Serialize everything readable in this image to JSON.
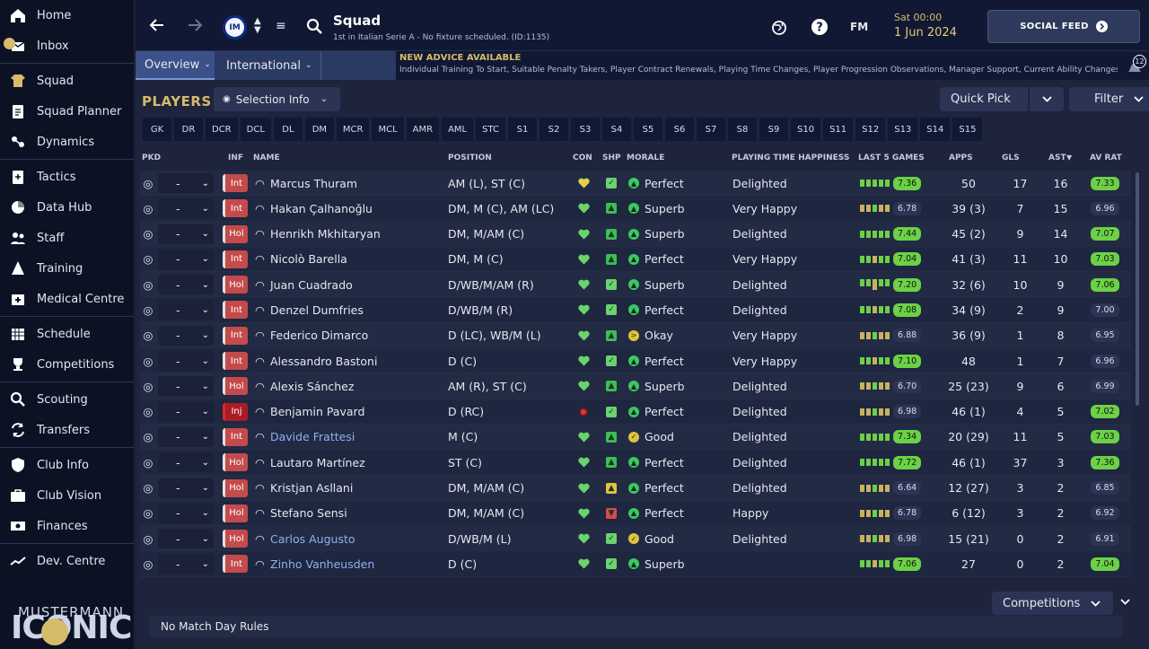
{
  "sidebar": {
    "items": [
      {
        "label": "Home",
        "icon": "home-icon"
      },
      {
        "label": "Inbox",
        "icon": "inbox-icon"
      },
      {
        "label": "Squad",
        "icon": "jersey-icon"
      },
      {
        "label": "Squad Planner",
        "icon": "clipboard-icon"
      },
      {
        "label": "Dynamics",
        "icon": "dynamics-icon"
      },
      {
        "label": "Tactics",
        "icon": "tactics-icon"
      },
      {
        "label": "Data Hub",
        "icon": "data-hub-icon"
      },
      {
        "label": "Staff",
        "icon": "staff-icon"
      },
      {
        "label": "Training",
        "icon": "training-icon"
      },
      {
        "label": "Medical Centre",
        "icon": "medical-icon"
      },
      {
        "label": "Schedule",
        "icon": "calendar-icon"
      },
      {
        "label": "Competitions",
        "icon": "trophy-icon"
      },
      {
        "label": "Scouting",
        "icon": "search-icon"
      },
      {
        "label": "Transfers",
        "icon": "transfer-icon"
      },
      {
        "label": "Club Info",
        "icon": "shield-icon"
      },
      {
        "label": "Club Vision",
        "icon": "briefcase-icon"
      },
      {
        "label": "Finances",
        "icon": "money-icon"
      },
      {
        "label": "Dev. Centre",
        "icon": "dev-centre-icon"
      }
    ],
    "logo_top": "MUSTERMANN",
    "logo_big": "ICONIC"
  },
  "header": {
    "crest_text": "IM",
    "title": "Squad",
    "subtitle": "1st in Italian Serie A - No fixture scheduled. (ID:1135)",
    "time": "Sat 00:00",
    "date": "1 Jun 2024",
    "fm_label": "FM",
    "social_label": "SOCIAL FEED"
  },
  "tabs": [
    {
      "label": "Overview"
    },
    {
      "label": "International"
    }
  ],
  "advice": {
    "heading": "NEW ADVICE AVAILABLE",
    "body": "Individual Training To Start, Suitable Penalty Takers, Player Contract Renewals, Playing Time Changes, Player Progression Observations, Manager Support, Current Ability Changes",
    "count": "12"
  },
  "players_title": "PLAYERS",
  "selection_info": "Selection Info",
  "quick_pick": "Quick Pick",
  "filter": "Filter",
  "position_tabs": [
    "GK",
    "DR",
    "DCR",
    "DCL",
    "DL",
    "DM",
    "MCR",
    "MCL",
    "AMR",
    "AML",
    "STC",
    "S1",
    "S2",
    "S3",
    "S4",
    "S5",
    "S6",
    "S7",
    "S8",
    "S9",
    "S10",
    "S11",
    "S12",
    "S13",
    "S14",
    "S15"
  ],
  "columns": {
    "pkd": "PKD",
    "inf": "INF",
    "name": "NAME",
    "position": "POSITION",
    "con": "CON",
    "shp": "SHP",
    "morale": "MORALE",
    "pth": "PLAYING TIME HAPPINESS",
    "last5": "LAST 5 GAMES",
    "apps": "APPS",
    "gls": "GLS",
    "ast": "AST",
    "avr": "AV RAT"
  },
  "players": [
    {
      "pkd": "-",
      "inf": "Int",
      "inj": false,
      "name": "Marcus Thuram",
      "link": false,
      "position": "AM (L), ST (C)",
      "con": "#e0d24a",
      "shp": "#6bd36b",
      "morale": "Perfect",
      "morale_color": "#3cc763",
      "pth": "Delighted",
      "last5": "7.36",
      "last5_color": "#6cd146",
      "apps": "50",
      "gls": "17",
      "ast": "16",
      "avr": "7.33",
      "avr_hi": true
    },
    {
      "pkd": "-",
      "inf": "Int",
      "inj": false,
      "name": "Hakan Çalhanoğlu",
      "link": false,
      "position": "DM, M (C), AM (LC)",
      "con": "#6bd36b",
      "shp": "#3bbf55",
      "morale": "Superb",
      "morale_color": "#3cc763",
      "pth": "Very Happy",
      "last5": "6.78",
      "last5_color": "#2b3454",
      "apps": "39 (3)",
      "gls": "7",
      "ast": "15",
      "avr": "6.96",
      "avr_hi": false
    },
    {
      "pkd": "-",
      "inf": "Hol",
      "inj": false,
      "name": "Henrikh Mkhitaryan",
      "link": false,
      "position": "DM, M/AM (C)",
      "con": "#6bd36b",
      "shp": "#3bbf55",
      "morale": "Superb",
      "morale_color": "#3cc763",
      "pth": "Delighted",
      "last5": "7.44",
      "last5_color": "#6cd146",
      "apps": "45 (2)",
      "gls": "9",
      "ast": "14",
      "avr": "7.07",
      "avr_hi": true
    },
    {
      "pkd": "-",
      "inf": "Int",
      "inj": false,
      "name": "Nicolò Barella",
      "link": false,
      "position": "DM, M (C)",
      "con": "#6bd36b",
      "shp": "#3bbf55",
      "morale": "Perfect",
      "morale_color": "#3cc763",
      "pth": "Very Happy",
      "last5": "7.04",
      "last5_color": "#6cd146",
      "apps": "41 (3)",
      "gls": "11",
      "ast": "10",
      "avr": "7.03",
      "avr_hi": true
    },
    {
      "pkd": "-",
      "inf": "Hol",
      "inj": false,
      "name": "Juan Cuadrado",
      "link": false,
      "position": "D/WB/M/AM (R)",
      "con": "#6bd36b",
      "shp": "#6bd36b",
      "morale": "Superb",
      "morale_color": "#3cc763",
      "pth": "Delighted",
      "last5": "7.20",
      "last5_color": "#6cd146",
      "apps": "32 (6)",
      "gls": "10",
      "ast": "9",
      "avr": "7.06",
      "avr_hi": true
    },
    {
      "pkd": "-",
      "inf": "Int",
      "inj": false,
      "name": "Denzel Dumfries",
      "link": false,
      "position": "D/WB/M (R)",
      "con": "#6bd36b",
      "shp": "#6bd36b",
      "morale": "Perfect",
      "morale_color": "#3cc763",
      "pth": "Delighted",
      "last5": "7.08",
      "last5_color": "#6cd146",
      "apps": "34 (9)",
      "gls": "2",
      "ast": "9",
      "avr": "7.00",
      "avr_hi": false
    },
    {
      "pkd": "-",
      "inf": "Int",
      "inj": false,
      "name": "Federico Dimarco",
      "link": false,
      "position": "D (LC), WB/M (L)",
      "con": "#6bd36b",
      "shp": "#3bbf55",
      "morale": "Okay",
      "morale_color": "#e0c43c",
      "pth": "Very Happy",
      "last5": "6.88",
      "last5_color": "#2b3454",
      "apps": "36 (9)",
      "gls": "1",
      "ast": "8",
      "avr": "6.95",
      "avr_hi": false
    },
    {
      "pkd": "-",
      "inf": "Int",
      "inj": false,
      "name": "Alessandro Bastoni",
      "link": false,
      "position": "D (C)",
      "con": "#6bd36b",
      "shp": "#6bd36b",
      "morale": "Perfect",
      "morale_color": "#3cc763",
      "pth": "Very Happy",
      "last5": "7.10",
      "last5_color": "#6cd146",
      "apps": "48",
      "gls": "1",
      "ast": "7",
      "avr": "6.96",
      "avr_hi": false
    },
    {
      "pkd": "-",
      "inf": "Hol",
      "inj": false,
      "name": "Alexis Sánchez",
      "link": false,
      "position": "AM (R), ST (C)",
      "con": "#6bd36b",
      "shp": "#3bbf55",
      "morale": "Superb",
      "morale_color": "#3cc763",
      "pth": "Delighted",
      "last5": "6.70",
      "last5_color": "#2b3454",
      "apps": "25 (23)",
      "gls": "9",
      "ast": "6",
      "avr": "6.99",
      "avr_hi": false
    },
    {
      "pkd": "-",
      "inf": "Inj",
      "inj": true,
      "name": "Benjamin Pavard",
      "link": false,
      "position": "D (RC)",
      "con": "#d93a3a",
      "shp": "#6bd36b",
      "morale": "Perfect",
      "morale_color": "#3cc763",
      "pth": "Delighted",
      "last5": "6.98",
      "last5_color": "#2b3454",
      "apps": "46 (1)",
      "gls": "4",
      "ast": "5",
      "avr": "7.02",
      "avr_hi": true
    },
    {
      "pkd": "-",
      "inf": "Int",
      "inj": false,
      "name": "Davide Frattesi",
      "link": true,
      "position": "M (C)",
      "con": "#6bd36b",
      "shp": "#3bbf55",
      "morale": "Good",
      "morale_color": "#e0c43c",
      "pth": "Delighted",
      "last5": "7.34",
      "last5_color": "#6cd146",
      "apps": "20 (29)",
      "gls": "11",
      "ast": "5",
      "avr": "7.03",
      "avr_hi": true
    },
    {
      "pkd": "-",
      "inf": "Hol",
      "inj": false,
      "name": "Lautaro Martínez",
      "link": false,
      "position": "ST (C)",
      "con": "#6bd36b",
      "shp": "#3bbf55",
      "morale": "Perfect",
      "morale_color": "#3cc763",
      "pth": "Delighted",
      "last5": "7.72",
      "last5_color": "#6cd146",
      "apps": "46 (1)",
      "gls": "37",
      "ast": "3",
      "avr": "7.36",
      "avr_hi": true
    },
    {
      "pkd": "-",
      "inf": "Hol",
      "inj": false,
      "name": "Kristjan Asllani",
      "link": false,
      "position": "DM, M/AM (C)",
      "con": "#6bd36b",
      "shp": "#e0c43c",
      "morale": "Perfect",
      "morale_color": "#3cc763",
      "pth": "Delighted",
      "last5": "6.64",
      "last5_color": "#2b3454",
      "apps": "12 (27)",
      "gls": "3",
      "ast": "2",
      "avr": "6.85",
      "avr_hi": false
    },
    {
      "pkd": "-",
      "inf": "Hol",
      "inj": false,
      "name": "Stefano Sensi",
      "link": false,
      "position": "DM, M/AM (C)",
      "con": "#6bd36b",
      "shp": "#d94a4a",
      "morale": "Perfect",
      "morale_color": "#3cc763",
      "pth": "Happy",
      "last5": "6.78",
      "last5_color": "#2b3454",
      "apps": "6 (12)",
      "gls": "3",
      "ast": "2",
      "avr": "6.92",
      "avr_hi": false
    },
    {
      "pkd": "-",
      "inf": "Hol",
      "inj": false,
      "name": "Carlos Augusto",
      "link": true,
      "position": "D/WB/M (L)",
      "con": "#6bd36b",
      "shp": "#6bd36b",
      "morale": "Good",
      "morale_color": "#e0c43c",
      "pth": "Delighted",
      "last5": "6.98",
      "last5_color": "#2b3454",
      "apps": "15 (21)",
      "gls": "0",
      "ast": "2",
      "avr": "6.91",
      "avr_hi": false
    },
    {
      "pkd": "-",
      "inf": "Int",
      "inj": false,
      "name": "Zinho Vanheusden",
      "link": true,
      "position": "D (C)",
      "con": "#6bd36b",
      "shp": "#6bd36b",
      "morale": "Superb",
      "morale_color": "#3cc763",
      "pth": "",
      "last5": "7.06",
      "last5_color": "#6cd146",
      "apps": "27",
      "gls": "0",
      "ast": "2",
      "avr": "7.04",
      "avr_hi": true
    }
  ],
  "competitions": "Competitions",
  "match_rules": "No Match Day Rules"
}
